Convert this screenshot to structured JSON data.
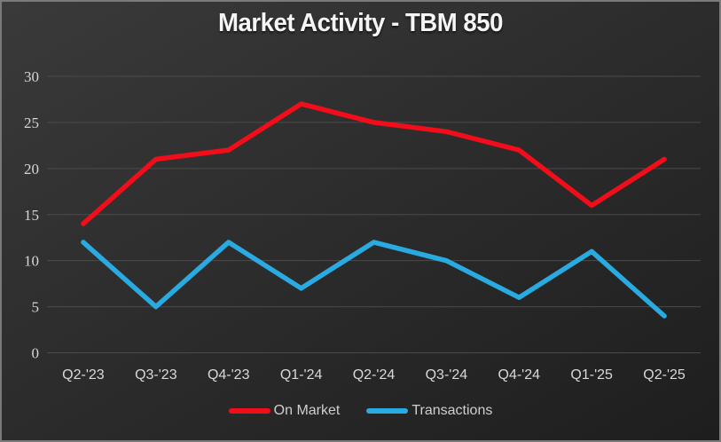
{
  "chart_data": {
    "type": "line",
    "title": "Market Activity - TBM 850",
    "categories": [
      "Q2-'23",
      "Q3-'23",
      "Q4-'23",
      "Q1-'24",
      "Q2-'24",
      "Q3-'24",
      "Q4-'24",
      "Q1-'25",
      "Q2-'25"
    ],
    "series": [
      {
        "name": "On Market",
        "color": "#F10D1A",
        "values": [
          14,
          21,
          22,
          27,
          25,
          24,
          22,
          16,
          21
        ]
      },
      {
        "name": "Transactions",
        "color": "#29ABE2",
        "values": [
          12,
          5,
          12,
          7,
          12,
          10,
          6,
          11,
          4
        ]
      }
    ],
    "xlabel": "",
    "ylabel": "",
    "ylim": [
      0,
      30
    ],
    "ytick_step": 5,
    "ytick_labels": [
      "0",
      "5",
      "10",
      "15",
      "20",
      "25",
      "30"
    ],
    "grid": true,
    "grid_color": "#4b4b4b",
    "legend_position": "bottom",
    "background": "dark-gradient"
  }
}
